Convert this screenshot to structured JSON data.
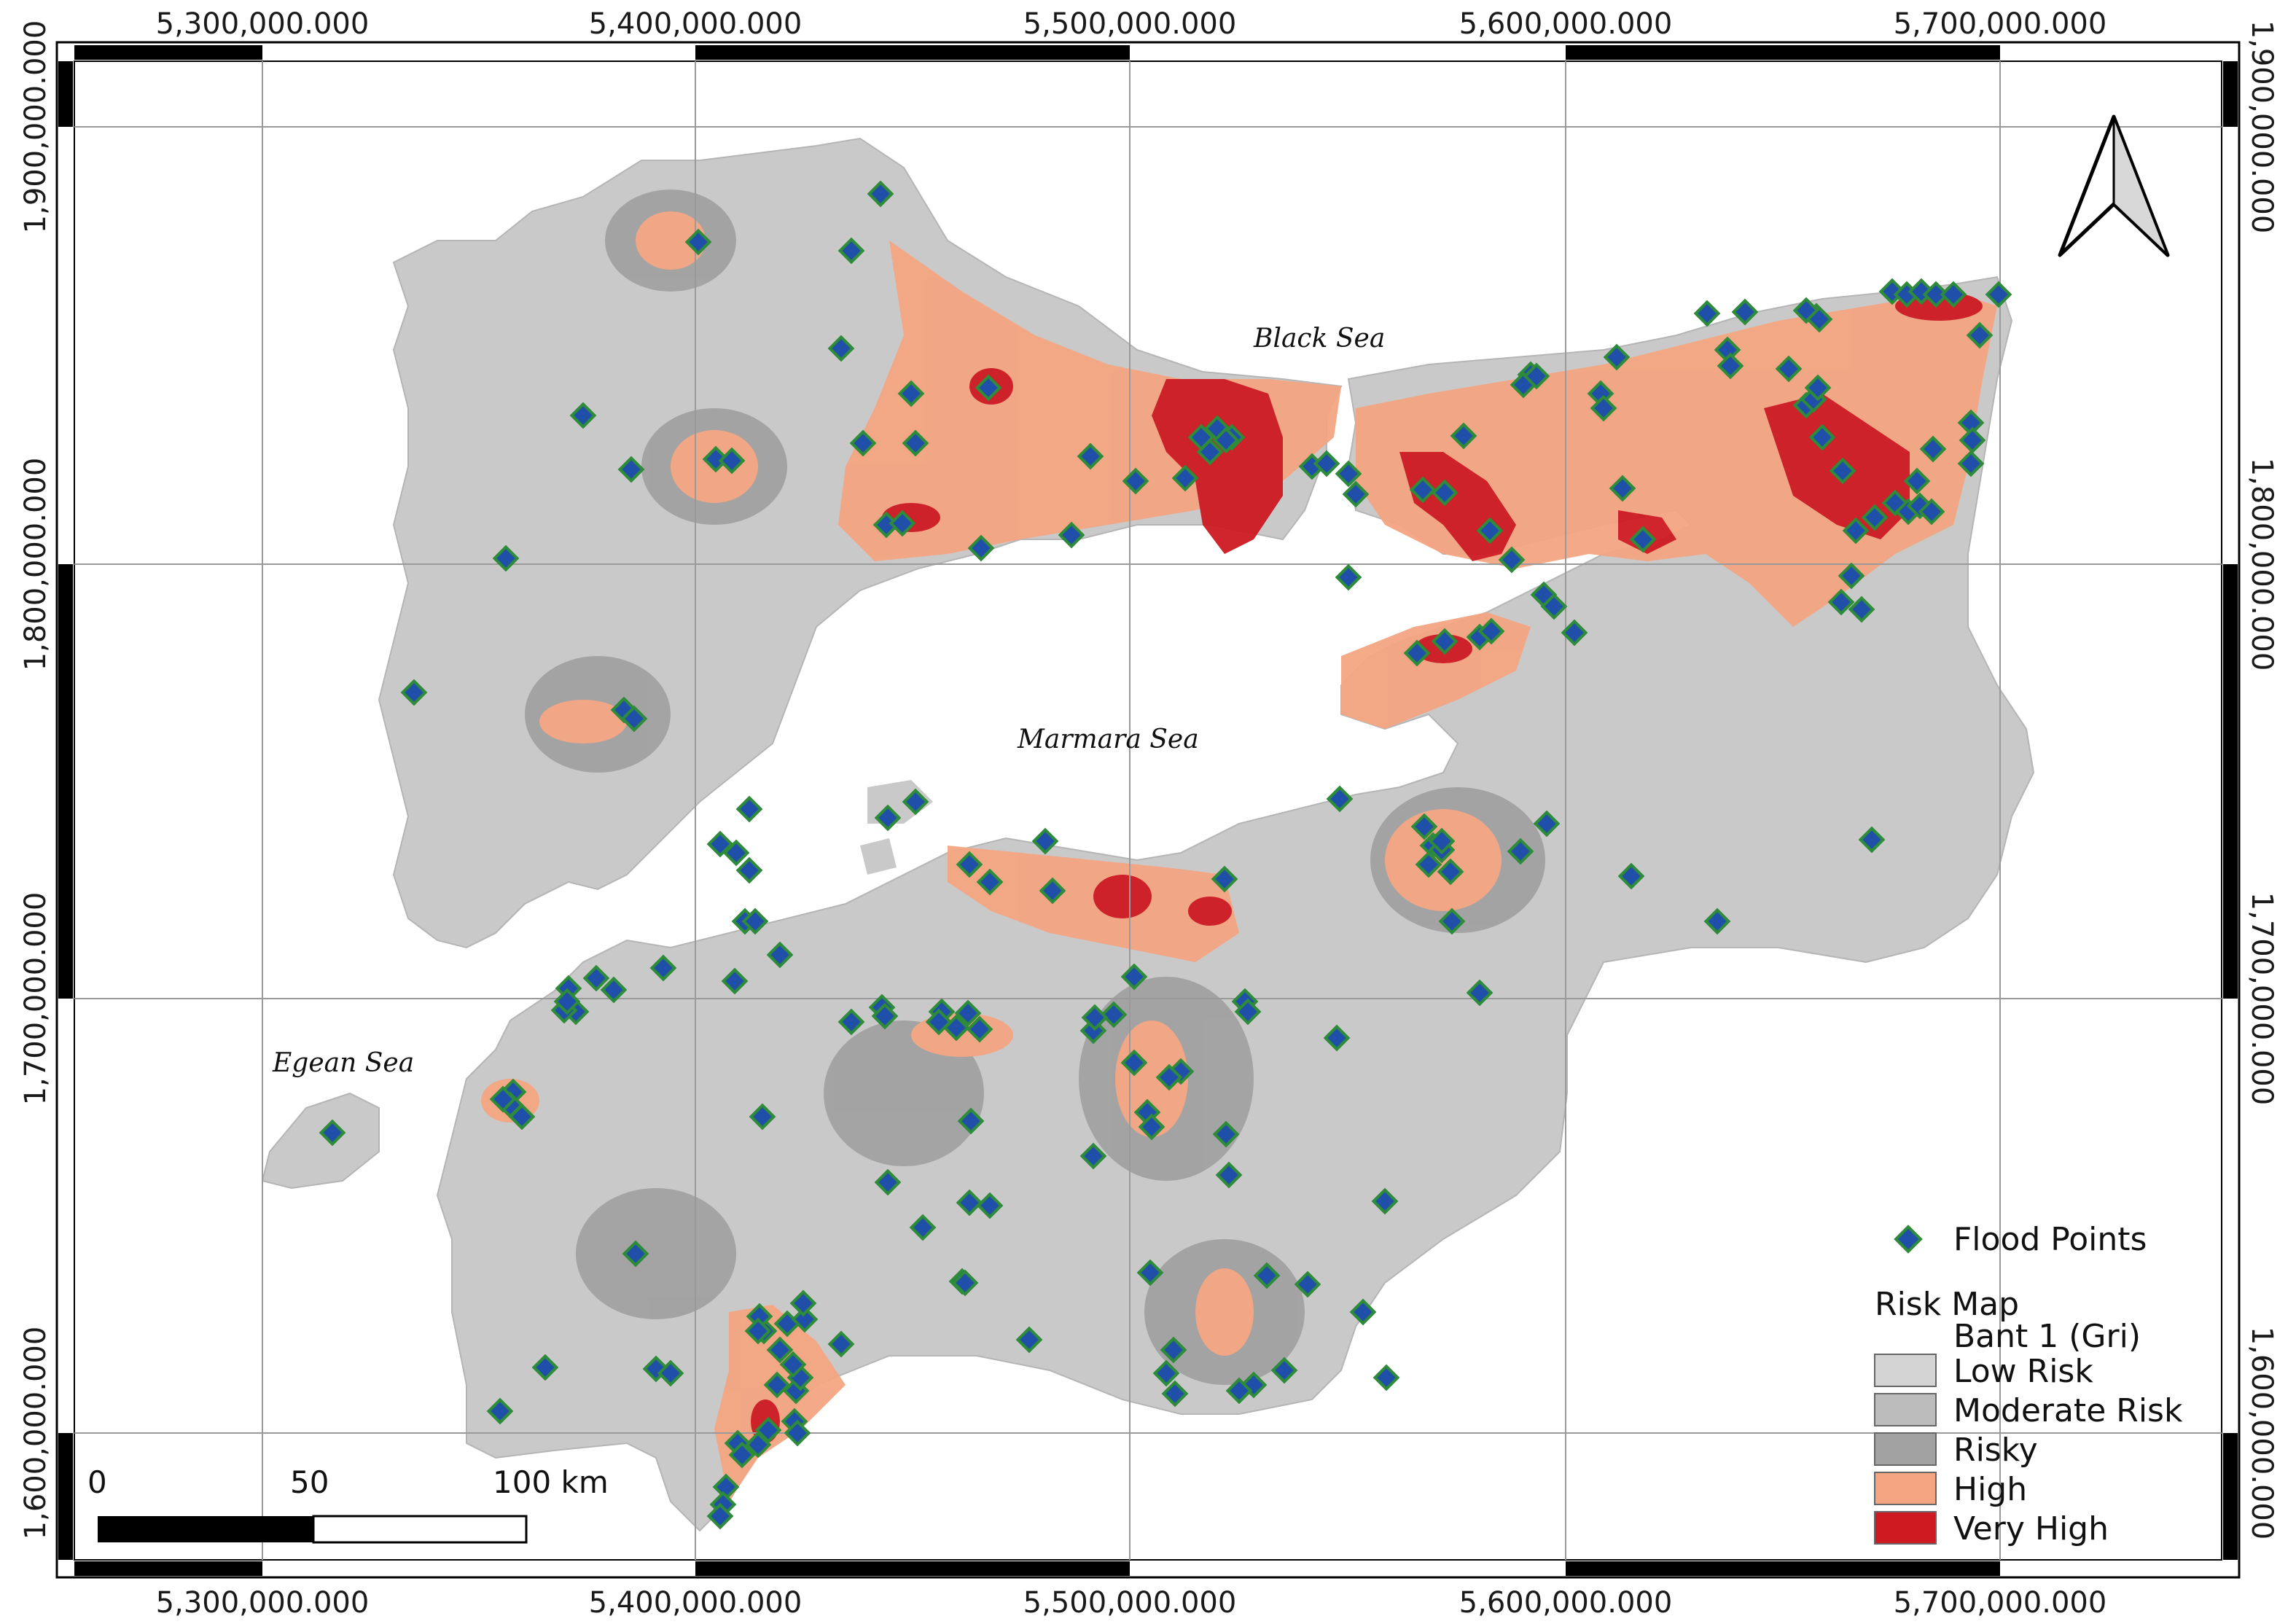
{
  "x_ticks": [
    "5,300,000.000",
    "5,400,000.000",
    "5,500,000.000",
    "5,600,000.000",
    "5,700,000.000"
  ],
  "y_ticks": [
    "1,900,000.000",
    "1,800,000.000",
    "1,700,000.000",
    "1,600,000.000"
  ],
  "seas": {
    "black_sea": "Black Sea",
    "marmara_sea": "Marmara Sea",
    "egean_sea": "Egean Sea"
  },
  "legend": {
    "points_label": "Flood Points",
    "risk_title": "Risk Map",
    "band_label": "Bant 1 (Gri)",
    "classes": [
      {
        "label": "Low Risk",
        "color": "#d4d4d4"
      },
      {
        "label": "Moderate Risk",
        "color": "#bcbcbc"
      },
      {
        "label": "Risky",
        "color": "#a2a2a2"
      },
      {
        "label": "High",
        "color": "#f4a582"
      },
      {
        "label": "Very High",
        "color": "#cf1a22"
      }
    ],
    "point_color": "#1f4fa8",
    "point_edge_color": "#2e8b3a"
  },
  "scale_bar": {
    "labels": [
      "0",
      "50",
      "100 km"
    ]
  },
  "north_arrow_icon": "north-arrow-icon",
  "colors": {
    "sea": "#ffffff",
    "grid": "#9a9a9a",
    "frame": "#000000"
  }
}
